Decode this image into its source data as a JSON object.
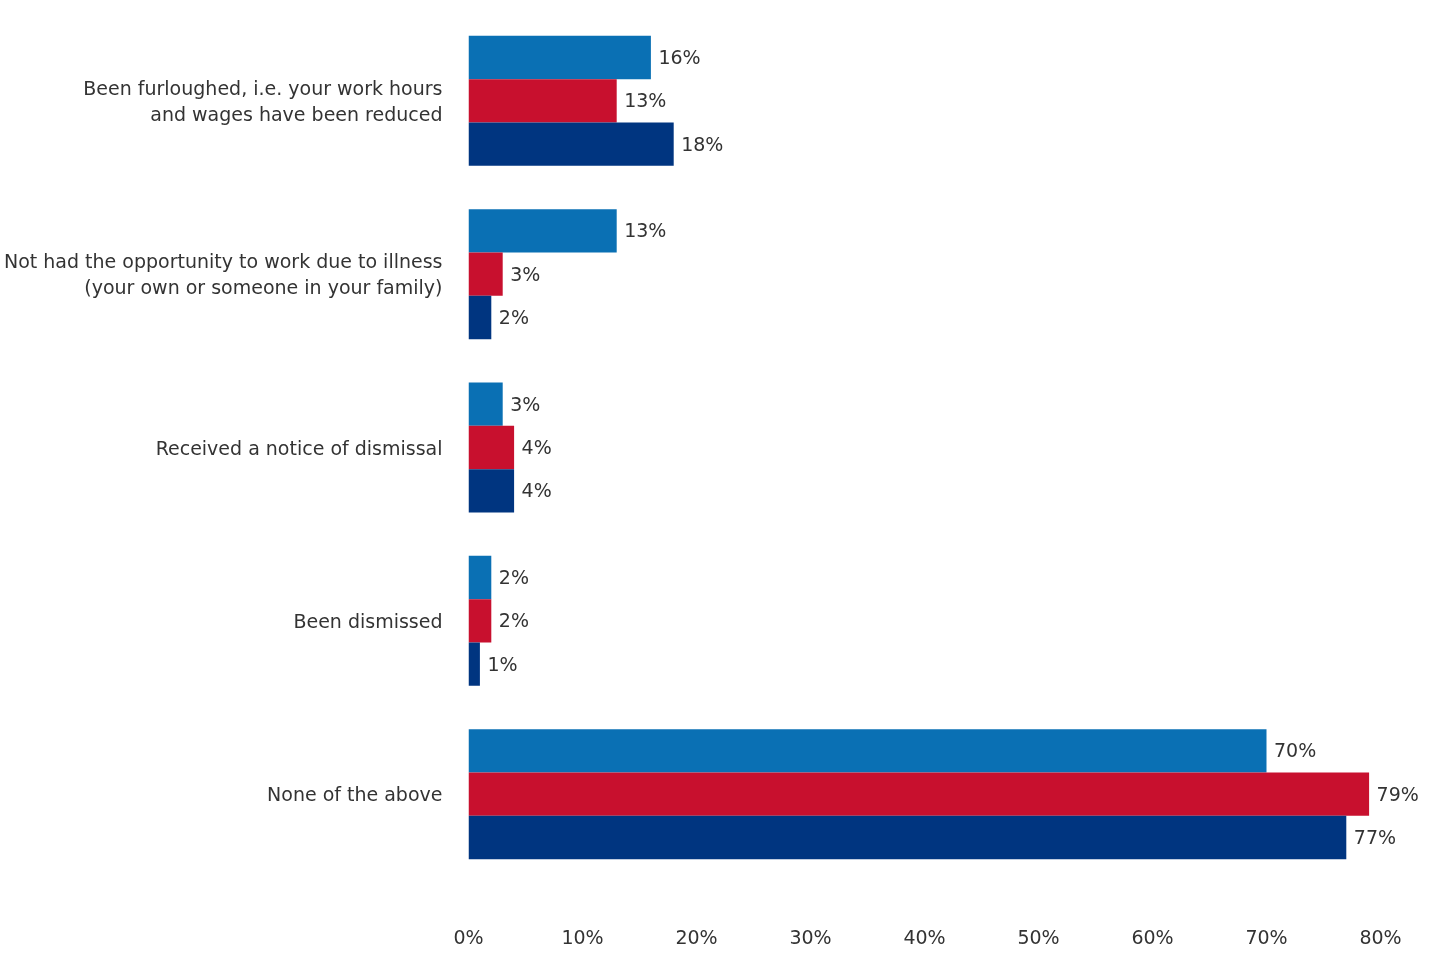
{
  "chart_data": {
    "type": "bar",
    "orientation": "horizontal",
    "categories": [
      "Been furloughed, i.e. your work hours\nand wages have been reduced",
      "Not had the opportunity to work due to illness\n(your own or someone in your family)",
      "Received a notice of dismissal",
      "Been dismissed",
      "None of the above"
    ],
    "series": [
      {
        "color": "#0a70b4",
        "values": [
          16,
          13,
          3,
          2,
          70
        ],
        "value_labels": [
          "16%",
          "13%",
          "3%",
          "2%",
          "70%"
        ]
      },
      {
        "color": "#c8102e",
        "values": [
          13,
          3,
          4,
          2,
          79
        ],
        "value_labels": [
          "13%",
          "3%",
          "4%",
          "2%",
          "79%"
        ]
      },
      {
        "color": "#003580",
        "values": [
          18,
          2,
          4,
          1,
          77
        ],
        "value_labels": [
          "18%",
          "2%",
          "4%",
          "1%",
          "77%"
        ]
      }
    ],
    "xlim": [
      0,
      80
    ],
    "xticks": [
      {
        "value": 0,
        "label": "0%"
      },
      {
        "value": 10,
        "label": "10%"
      },
      {
        "value": 20,
        "label": "20%"
      },
      {
        "value": 30,
        "label": "30%"
      },
      {
        "value": 40,
        "label": "40%"
      },
      {
        "value": 50,
        "label": "50%"
      },
      {
        "value": 60,
        "label": "60%"
      },
      {
        "value": 70,
        "label": "70%"
      },
      {
        "value": 80,
        "label": "80%"
      }
    ],
    "grid": false
  }
}
